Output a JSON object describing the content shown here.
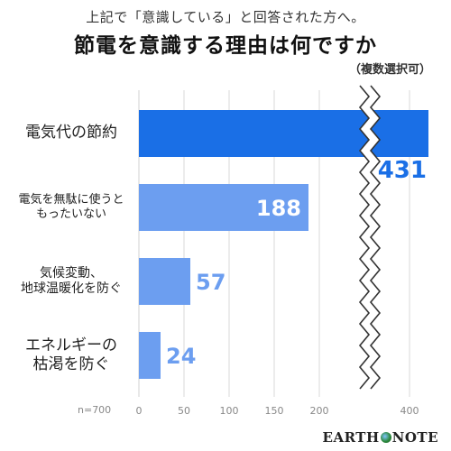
{
  "header": {
    "subtitle": "上記で「意識している」と回答された方へ。",
    "title": "節電を意識する理由は何ですか",
    "note": "（複数選択可）"
  },
  "sample": "n=700",
  "logo": {
    "text_before": "EARTH",
    "text_after": "NOTE"
  },
  "colors": {
    "top_bar": "#1a6fe6",
    "other_bars": "#6c9ef0",
    "top_label": "#1a6fe6",
    "other_label": "#6c9ef0",
    "grid": "#d9d9d9"
  },
  "chart_data": {
    "type": "bar",
    "orientation": "horizontal",
    "axis_break": [
      225,
      380
    ],
    "categories": [
      {
        "line1": "電気代の節約",
        "line2": ""
      },
      {
        "line1": "電気を無駄に使うと",
        "line2": "もったいない"
      },
      {
        "line1": "気候変動、",
        "line2": "地球温暖化を防ぐ"
      },
      {
        "line1": "エネルギーの",
        "line2": "枯渇を防ぐ"
      }
    ],
    "values": [
      431,
      188,
      57,
      24
    ],
    "value_labels": [
      "431",
      "188",
      "57",
      "24"
    ],
    "xticks": [
      {
        "value": 0,
        "label": "0"
      },
      {
        "value": 50,
        "label": "50"
      },
      {
        "value": 100,
        "label": "100"
      },
      {
        "value": 150,
        "label": "150"
      },
      {
        "value": 200,
        "label": "200"
      },
      {
        "value": 400,
        "label": "400"
      }
    ],
    "grid": true
  }
}
